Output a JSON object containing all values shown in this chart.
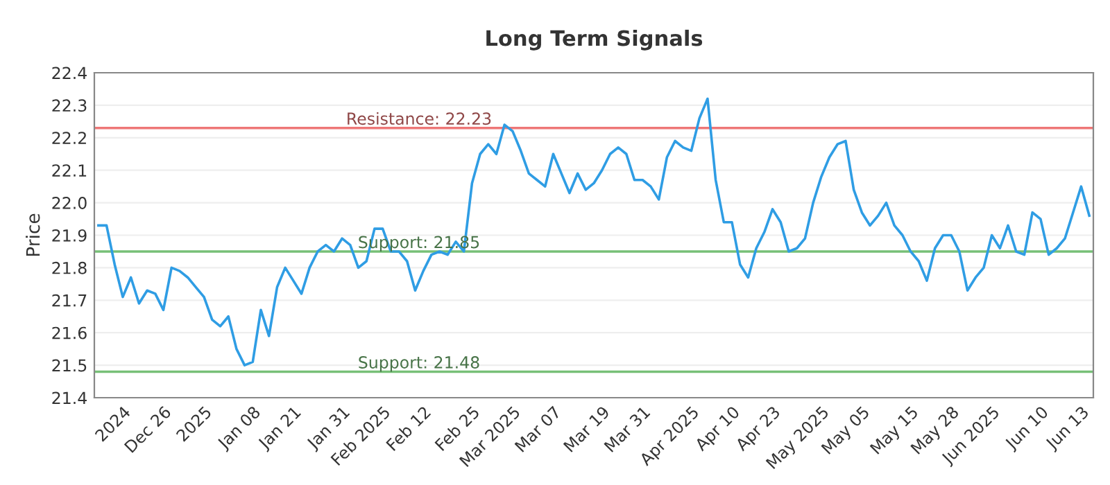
{
  "chart_data": {
    "type": "line",
    "title": "Long Term Signals",
    "ylabel": "Price",
    "categories": [
      null,
      null,
      null,
      "2024",
      null,
      null,
      null,
      null,
      "Dec 26",
      null,
      null,
      null,
      null,
      "2025",
      null,
      null,
      null,
      null,
      null,
      "Jan 08",
      null,
      null,
      null,
      null,
      "Jan 21",
      null,
      null,
      null,
      null,
      null,
      "Jan 31",
      null,
      null,
      null,
      null,
      "Feb 2025",
      null,
      null,
      null,
      null,
      "Feb 12",
      null,
      null,
      null,
      null,
      null,
      "Feb 25",
      null,
      null,
      null,
      null,
      "Mar 2025",
      null,
      null,
      null,
      null,
      "Mar 07",
      null,
      null,
      null,
      null,
      null,
      "Mar 19",
      null,
      null,
      null,
      null,
      "Mar 31",
      null,
      null,
      null,
      null,
      null,
      "Apr 2025",
      null,
      null,
      null,
      null,
      "Apr 10",
      null,
      null,
      null,
      null,
      "Apr 23",
      null,
      null,
      null,
      null,
      null,
      "May 2025",
      null,
      null,
      null,
      null,
      "May 05",
      null,
      null,
      null,
      null,
      null,
      "May 15",
      null,
      null,
      null,
      null,
      "May 28",
      null,
      null,
      null,
      null,
      "Jun 2025",
      null,
      null,
      null,
      null,
      null,
      "Jun 10",
      null,
      null,
      null,
      null,
      "Jun 13",
      null
    ],
    "series": [
      {
        "color": "#2f9de4",
        "values": [
          21.93,
          21.93,
          21.81,
          21.71,
          21.77,
          21.69,
          21.73,
          21.72,
          21.67,
          21.8,
          21.79,
          21.77,
          21.74,
          21.71,
          21.64,
          21.62,
          21.65,
          21.55,
          21.5,
          21.51,
          21.67,
          21.59,
          21.74,
          21.8,
          21.76,
          21.72,
          21.8,
          21.85,
          21.87,
          21.85,
          21.89,
          21.87,
          21.8,
          21.82,
          21.92,
          21.92,
          21.85,
          21.85,
          21.82,
          21.73,
          21.79,
          21.84,
          21.85,
          21.84,
          21.88,
          21.85,
          22.06,
          22.15,
          22.18,
          22.15,
          22.24,
          22.22,
          22.16,
          22.09,
          22.07,
          22.05,
          22.15,
          22.09,
          22.03,
          22.09,
          22.04,
          22.06,
          22.1,
          22.15,
          22.17,
          22.15,
          22.07,
          22.07,
          22.05,
          22.01,
          22.14,
          22.19,
          22.17,
          22.16,
          22.26,
          22.32,
          22.07,
          21.94,
          21.94,
          21.81,
          21.77,
          21.86,
          21.91,
          21.98,
          21.94,
          21.85,
          21.86,
          21.89,
          22.0,
          22.08,
          22.14,
          22.18,
          22.19,
          22.04,
          21.97,
          21.93,
          21.96,
          22.0,
          21.93,
          21.9,
          21.85,
          21.82,
          21.76,
          21.86,
          21.9,
          21.9,
          21.85,
          21.73,
          21.77,
          21.8,
          21.9,
          21.86,
          21.93,
          21.85,
          21.84,
          21.97,
          21.95,
          21.84,
          21.86,
          21.89,
          21.97,
          22.05,
          21.96
        ]
      }
    ],
    "ylim": [
      21.4,
      22.4
    ],
    "yticks": [
      21.4,
      21.5,
      21.6,
      21.7,
      21.8,
      21.9,
      {
        "value": 22.0,
        "label": "22.0"
      },
      22.1,
      22.2,
      22.3,
      22.4
    ],
    "grid": "y",
    "ref_lines": [
      {
        "axis": "y",
        "value": 22.23,
        "label": "Resistance: 22.23",
        "color": "#ee7777"
      },
      {
        "axis": "y",
        "value": 21.85,
        "label": "Support: 21.85",
        "color": "#77c077"
      },
      {
        "axis": "y",
        "value": 21.48,
        "label": "Support: 21.48",
        "color": "#77c077"
      }
    ]
  }
}
